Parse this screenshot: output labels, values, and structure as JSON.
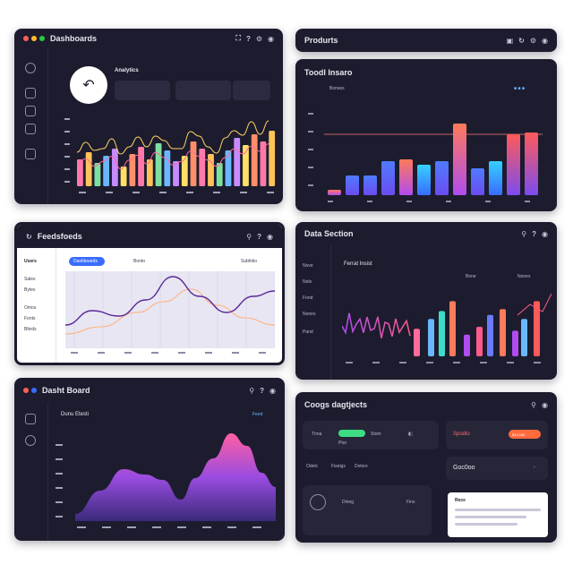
{
  "card1": {
    "title": "Dashboards",
    "subtitle": "Analytics",
    "icons": [
      "fullscreen-icon",
      "help-icon",
      "settings-icon",
      "user-icon"
    ]
  },
  "card2": {
    "title": "Produrts",
    "subtitle": "Toodl Insaro",
    "legend": "Bonses"
  },
  "card3": {
    "title": "Feedsfoeds",
    "tab_active": "Dashboards",
    "tab2": "Bonto",
    "tab3": "Subfolio",
    "side_top": "Users",
    "side_items": [
      "Sales",
      "Bytes",
      "Omos",
      "Fonts",
      "Blinds"
    ]
  },
  "card4": {
    "title": "Data Section",
    "subtitle": "Ferrat Insist",
    "legend1": "Bone",
    "legend2": "Nones",
    "side_items": [
      "Nove",
      "Nole",
      "Fond",
      "Nones",
      "Pand"
    ]
  },
  "card5": {
    "title": "Dasht Board",
    "subtitle": "Dunu Etesti",
    "chip": "Feed"
  },
  "card6": {
    "title": "Coogs dagtjects",
    "row1_label": "Tnna",
    "row2_label": "Ptor",
    "row_mid": "Stom",
    "offer_text": "Spodlo",
    "offer_value": "$10,180",
    "tabs": [
      "Odelc",
      "Fiseigs",
      "Dolore"
    ],
    "metric": "Goc0oo",
    "btn1": "Dinng",
    "btn2": "Fins",
    "note_title": "Rece"
  },
  "colors": {
    "bg": "#1c1c2e",
    "accent": "#ff6b6b",
    "accent2": "#6ab7ff"
  }
}
